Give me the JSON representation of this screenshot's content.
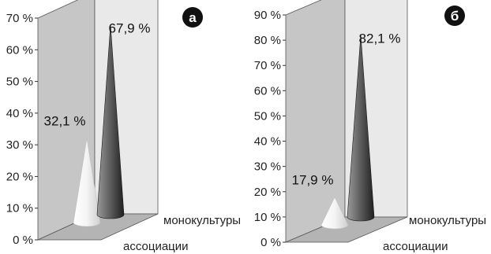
{
  "chart_data": [
    {
      "type": "bar",
      "panel_label": "а",
      "categories": [
        "ассоциации",
        "монокультуры"
      ],
      "values": [
        32.1,
        67.9
      ],
      "value_labels": [
        "32,1 %",
        "67,9 %"
      ],
      "ylim": [
        0,
        70
      ],
      "y_ticks": [
        "0 %",
        "10 %",
        "20 %",
        "30 %",
        "40 %",
        "50 %",
        "60 %",
        "70 %"
      ],
      "grid": false,
      "colors": {
        "ассоциации": "#f2f2f2",
        "монокультуры": "#4a4a4a"
      }
    },
    {
      "type": "bar",
      "panel_label": "б",
      "categories": [
        "ассоциации",
        "монокультуры"
      ],
      "values": [
        17.9,
        82.1
      ],
      "value_labels": [
        "17,9 %",
        "82,1 %"
      ],
      "ylim": [
        0,
        90
      ],
      "y_ticks": [
        "0 %",
        "10 %",
        "20 %",
        "30 %",
        "40 %",
        "50 %",
        "60 %",
        "70 %",
        "80 %",
        "90 %"
      ],
      "grid": false,
      "colors": {
        "ассоциации": "#f2f2f2",
        "монокультуры": "#4a4a4a"
      }
    }
  ]
}
